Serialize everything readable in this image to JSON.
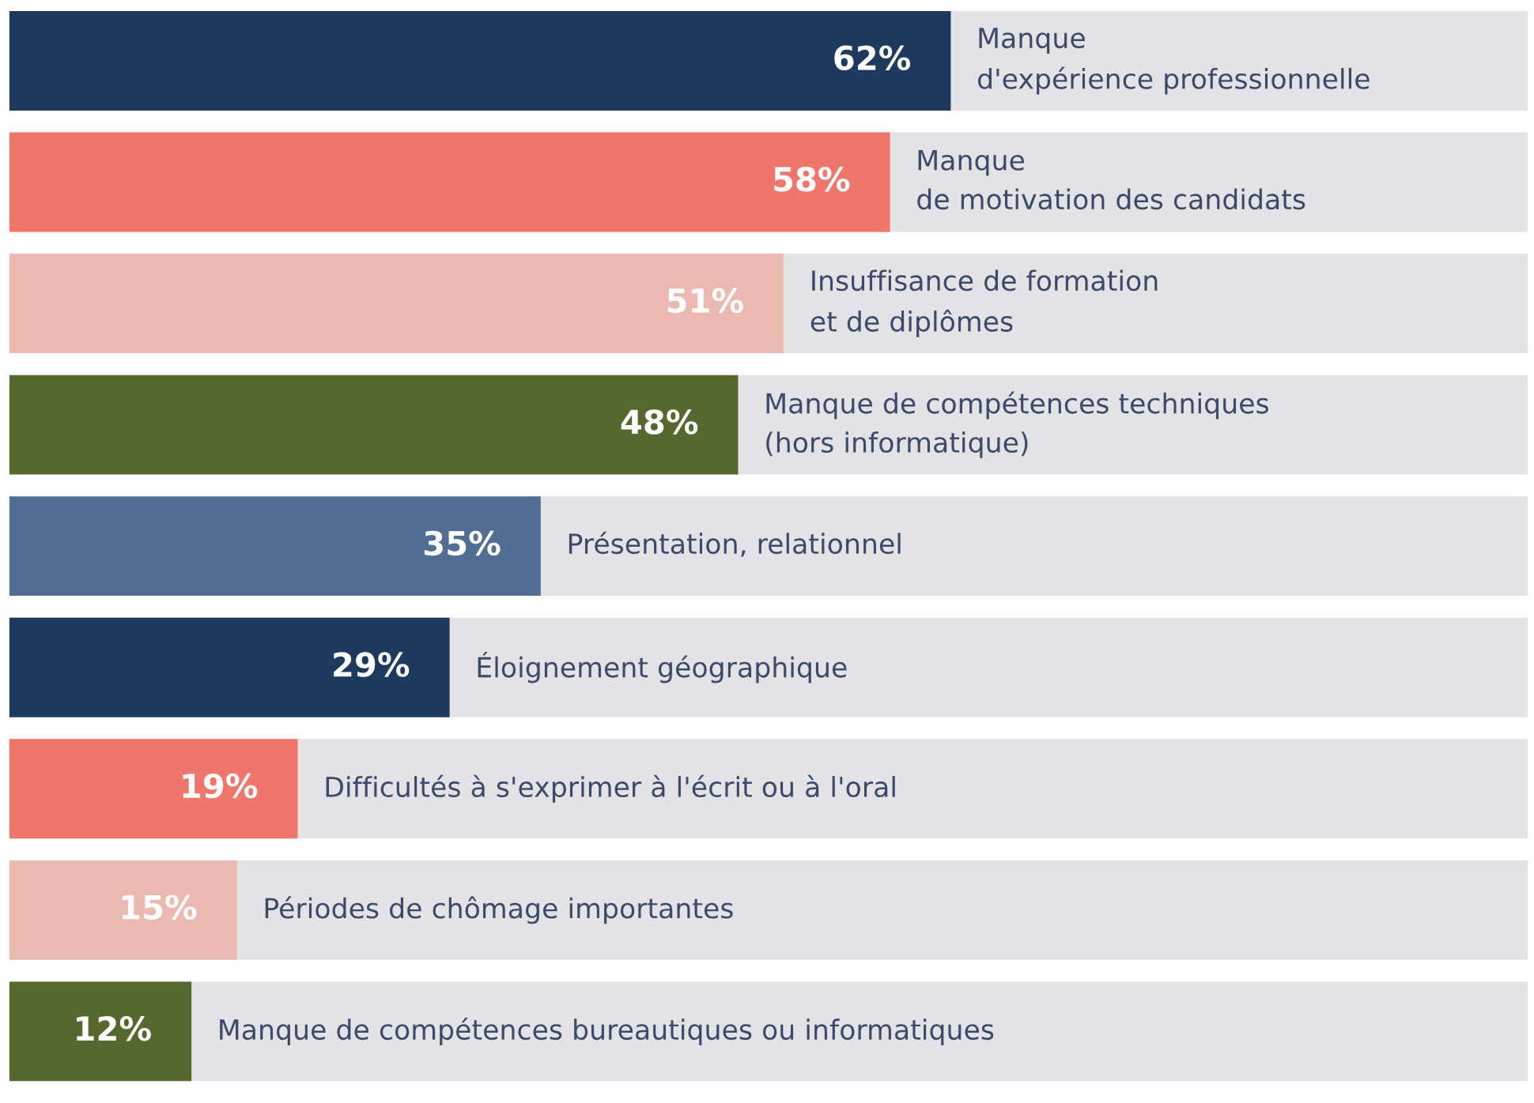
{
  "chart_data": {
    "type": "bar",
    "orientation": "horizontal",
    "categories": [
      "Manque\nd'expérience professionnelle",
      "Manque\nde motivation des candidats",
      "Insuffisance de formation\net de diplômes",
      "Manque de compétences techniques\n(hors informatique)",
      "Présentation, relationnel",
      "Éloignement géographique",
      "Difficultés à s'exprimer à l'écrit ou à l'oral",
      "Périodes de chômage importantes",
      "Manque de compétences bureautiques ou informatiques"
    ],
    "values": [
      62,
      58,
      51,
      48,
      35,
      29,
      19,
      15,
      12
    ],
    "colors": [
      "#1f3a5f",
      "#f0766b",
      "#ebb9b0",
      "#55692e",
      "#536e94",
      "#1f3a5f",
      "#f0766b",
      "#ebb9b0",
      "#55692e"
    ],
    "value_labels": [
      "62%",
      "58%",
      "51%",
      "48%",
      "35%",
      "29%",
      "19%",
      "15%",
      "12%"
    ],
    "xlim": [
      0,
      100
    ]
  }
}
